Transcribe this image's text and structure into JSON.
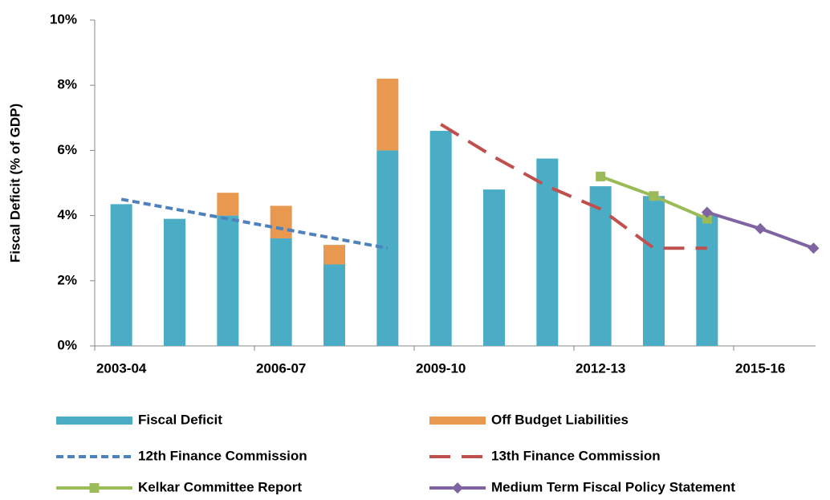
{
  "chart_data": {
    "type": "bar-line",
    "y_label": "Fiscal Deficit (% of GDP)",
    "categories": [
      "2003-04",
      null,
      null,
      "2006-07",
      null,
      null,
      "2009-10",
      null,
      null,
      "2012-13",
      null,
      null,
      "2015-16",
      null
    ],
    "ylim": [
      0,
      10
    ],
    "yticks": [
      {
        "value": 0,
        "label": "0%"
      },
      {
        "value": 2,
        "label": "2%"
      },
      {
        "value": 4,
        "label": "4%"
      },
      {
        "value": 6,
        "label": "6%"
      },
      {
        "value": 8,
        "label": "8%"
      },
      {
        "value": 10,
        "label": "10%"
      }
    ],
    "series": [
      {
        "name": "Fiscal Deficit",
        "kind": "bar",
        "color": "#4bacc6",
        "values": [
          4.35,
          3.9,
          4.0,
          3.3,
          2.5,
          6.0,
          6.6,
          4.8,
          5.75,
          4.9,
          4.6,
          4.0,
          null,
          null
        ]
      },
      {
        "name": "Off Budget Liabilities",
        "kind": "bar",
        "color": "#e8994f",
        "values": [
          null,
          null,
          0.7,
          1.0,
          0.6,
          2.2,
          null,
          null,
          null,
          null,
          null,
          null,
          null,
          null
        ]
      },
      {
        "name": "12th Finance Commission",
        "kind": "line",
        "color": "#4f81bd",
        "dash": "short",
        "values": [
          4.5,
          4.2,
          3.9,
          3.6,
          3.3,
          3.0,
          null,
          null,
          null,
          null,
          null,
          null,
          null,
          null
        ]
      },
      {
        "name": "13th Finance Commission",
        "kind": "line",
        "color": "#c0504d",
        "dash": "long",
        "values": [
          null,
          null,
          null,
          null,
          null,
          null,
          6.8,
          5.8,
          4.9,
          4.2,
          3.0,
          3.0,
          null,
          null
        ]
      },
      {
        "name": "Kelkar Committee Report",
        "kind": "line",
        "color": "#9bbb59",
        "marker": "square",
        "values": [
          null,
          null,
          null,
          null,
          null,
          null,
          null,
          null,
          null,
          5.2,
          4.6,
          3.9,
          null,
          null
        ]
      },
      {
        "name": "Medium Term Fiscal Policy Statement",
        "kind": "line",
        "color": "#8064a2",
        "marker": "diamond",
        "values": [
          null,
          null,
          null,
          null,
          null,
          null,
          null,
          null,
          null,
          null,
          null,
          4.1,
          3.6,
          3.0
        ]
      }
    ]
  }
}
